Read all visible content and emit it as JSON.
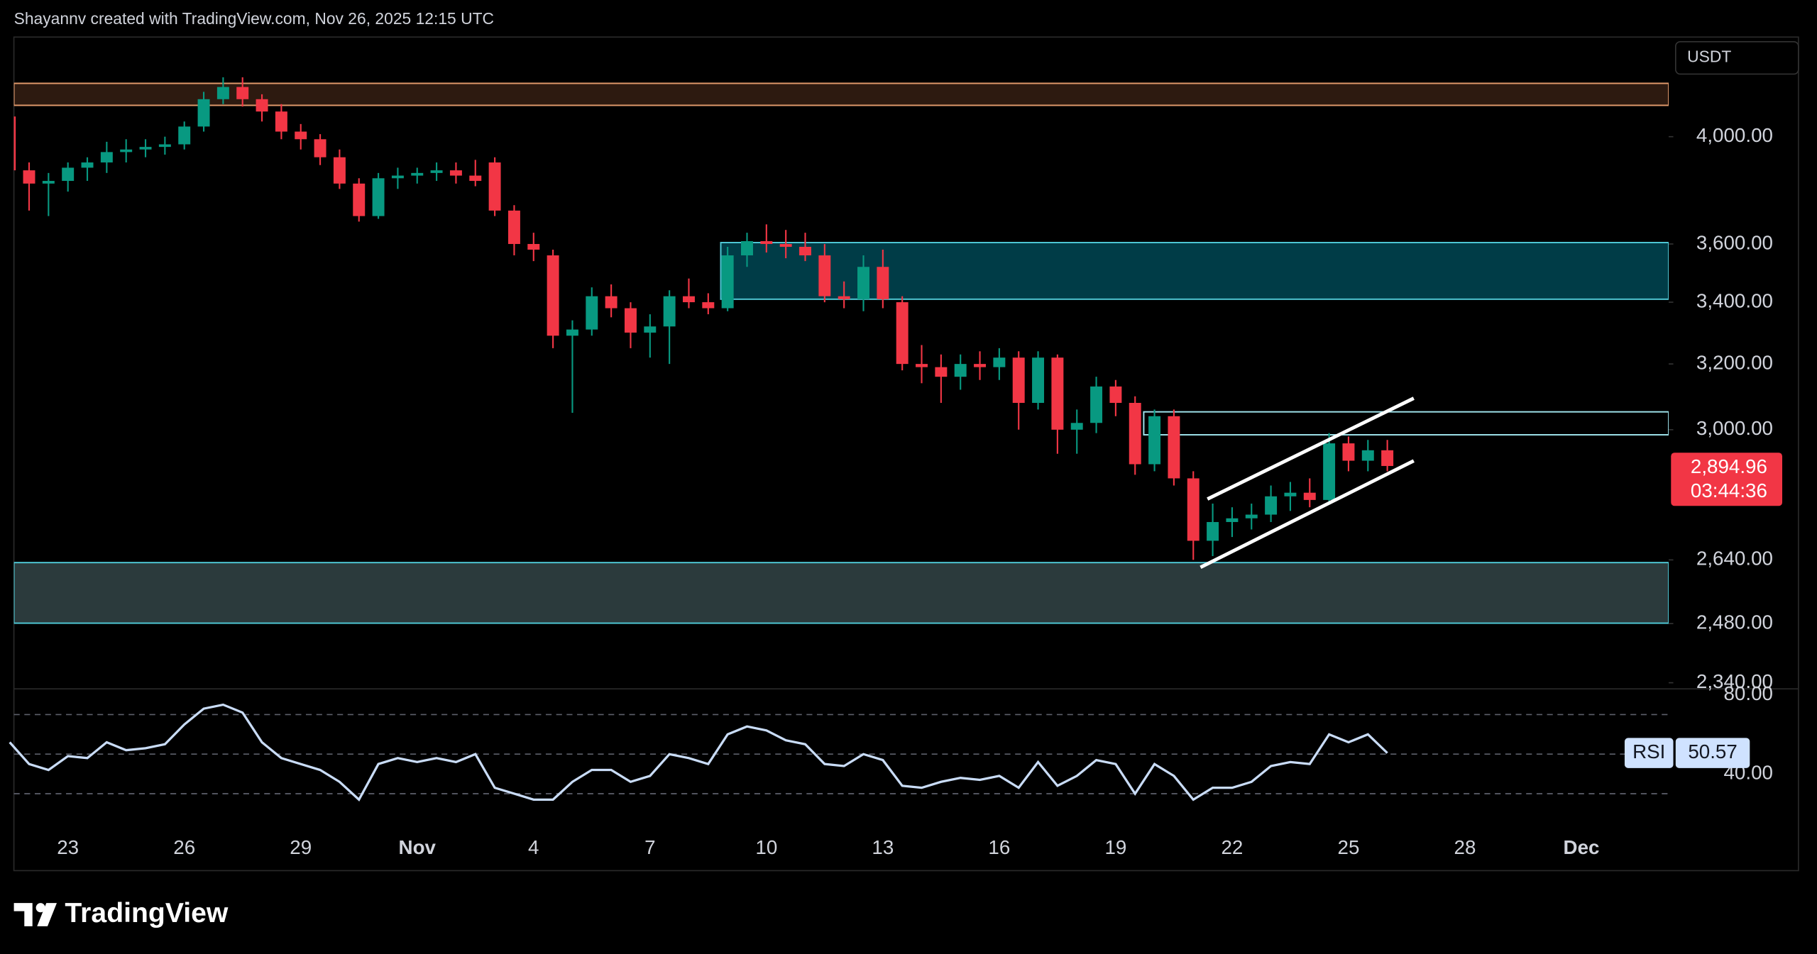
{
  "chart_data": {
    "type": "candlestick",
    "header": "Shayannv created with TradingView.com, Nov 26, 2025 12:15 UTC",
    "brand": "TradingView",
    "currency": "USDT",
    "log": true,
    "up_color": "#089981",
    "down_color": "#f23645",
    "categories": [
      null,
      null,
      null,
      "23",
      null,
      null,
      null,
      null,
      null,
      "26",
      null,
      null,
      null,
      null,
      null,
      "29",
      null,
      null,
      null,
      null,
      null,
      "Nov",
      null,
      null,
      null,
      null,
      null,
      "4",
      null,
      null,
      null,
      null,
      null,
      "7",
      null,
      null,
      null,
      null,
      null,
      "10",
      null,
      null,
      null,
      null,
      null,
      "13",
      null,
      null,
      null,
      null,
      null,
      "16",
      null,
      null,
      null,
      null,
      null,
      "19",
      null,
      null,
      null,
      null,
      null,
      "22",
      null,
      null,
      null,
      null,
      null,
      "25",
      null,
      null,
      null,
      null,
      null,
      "28",
      null,
      null,
      null,
      null,
      null,
      "Dec",
      null,
      null,
      null,
      null
    ],
    "open": [
      4080,
      3870,
      3820,
      3830,
      3880,
      3900,
      3940,
      3950,
      3960,
      3970,
      4040,
      4150,
      4200,
      4150,
      4100,
      4020,
      3990,
      3920,
      3820,
      3700,
      3840,
      3850,
      3860,
      3870,
      3850,
      3900,
      3720,
      3600,
      3560,
      3290,
      3310,
      3420,
      3380,
      3300,
      3320,
      3420,
      3400,
      3380,
      3560,
      3610,
      3600,
      3590,
      3560,
      3420,
      3410,
      3520,
      3400,
      3200,
      3190,
      3160,
      3200,
      3190,
      3220,
      3080,
      3220,
      3000,
      3020,
      3130,
      3080,
      2900,
      3040,
      2860,
      2690,
      2740,
      2750,
      2760,
      2810,
      2820,
      2800,
      2960,
      2910,
      2940,
      null,
      null,
      null,
      null,
      null,
      null,
      null,
      null,
      null,
      null,
      null,
      null,
      null,
      null
    ],
    "high": [
      4100,
      3900,
      3860,
      3900,
      3920,
      3980,
      3990,
      3990,
      4000,
      4060,
      4180,
      4240,
      4240,
      4170,
      4130,
      4050,
      4010,
      3950,
      3840,
      3860,
      3880,
      3880,
      3900,
      3900,
      3910,
      3920,
      3740,
      3640,
      3580,
      3340,
      3450,
      3460,
      3400,
      3360,
      3440,
      3480,
      3430,
      3590,
      3640,
      3670,
      3650,
      3640,
      3600,
      3470,
      3560,
      3580,
      3420,
      3260,
      3230,
      3230,
      3240,
      3250,
      3240,
      3240,
      3230,
      3060,
      3160,
      3150,
      3100,
      3060,
      3060,
      2880,
      2790,
      2780,
      2790,
      2840,
      2850,
      2860,
      2990,
      2980,
      2970,
      2970,
      null,
      null,
      null,
      null,
      null,
      null,
      null,
      null,
      null,
      null,
      null,
      null,
      null,
      null
    ],
    "low": [
      3850,
      3720,
      3700,
      3790,
      3830,
      3860,
      3900,
      3920,
      3930,
      3950,
      4020,
      4130,
      4120,
      4060,
      3990,
      3950,
      3890,
      3800,
      3680,
      3690,
      3800,
      3820,
      3830,
      3820,
      3810,
      3700,
      3560,
      3540,
      3250,
      3050,
      3290,
      3350,
      3250,
      3220,
      3200,
      3380,
      3360,
      3370,
      3520,
      3570,
      3550,
      3540,
      3400,
      3380,
      3370,
      3380,
      3180,
      3140,
      3080,
      3120,
      3150,
      3150,
      3000,
      3060,
      2930,
      2930,
      2990,
      3040,
      2870,
      2880,
      2840,
      2640,
      2650,
      2700,
      2720,
      2740,
      2770,
      2780,
      2790,
      2880,
      2880,
      2880,
      null,
      null,
      null,
      null,
      null,
      null,
      null,
      null,
      null,
      null,
      null,
      null,
      null,
      null
    ],
    "close": [
      3870,
      3820,
      3830,
      3880,
      3900,
      3940,
      3950,
      3960,
      3970,
      4040,
      4150,
      4200,
      4150,
      4100,
      4020,
      3990,
      3920,
      3820,
      3700,
      3840,
      3850,
      3860,
      3870,
      3850,
      3830,
      3720,
      3600,
      3580,
      3290,
      3310,
      3420,
      3380,
      3300,
      3320,
      3420,
      3400,
      3380,
      3560,
      3610,
      3600,
      3590,
      3560,
      3420,
      3410,
      3520,
      3410,
      3200,
      3190,
      3160,
      3200,
      3190,
      3220,
      3080,
      3220,
      3000,
      3020,
      3130,
      3080,
      2900,
      3040,
      2860,
      2690,
      2740,
      2750,
      2760,
      2810,
      2820,
      2800,
      2960,
      2910,
      2940,
      2894.96,
      null,
      null,
      null,
      null,
      null,
      null,
      null,
      null,
      null,
      null,
      null,
      null,
      null,
      null
    ],
    "close_label": "2,894.96",
    "countdown": "03:44:36",
    "ylim": [
      2326,
      4411
    ],
    "yticks": [
      {
        "value": 4000,
        "label": "4,000.00"
      },
      {
        "value": 3600,
        "label": "3,600.00"
      },
      {
        "value": 3400,
        "label": "3,400.00"
      },
      {
        "value": 3200,
        "label": "3,200.00"
      },
      {
        "value": 3000,
        "label": "3,000.00"
      },
      {
        "value": 2640,
        "label": "2,640.00"
      },
      {
        "value": 2480,
        "label": "2,480.00"
      },
      {
        "value": 2340,
        "label": "2,340.00"
      }
    ],
    "zones": [
      {
        "low": 4125,
        "high": 4215,
        "color": "#2d1a10",
        "border": "#e39a6c"
      },
      {
        "low": 3410,
        "high": 3605,
        "color": "#003c47",
        "border": "#4fc9d6"
      },
      {
        "low": 2985,
        "high": 3053,
        "color": "#000000",
        "border": "#9fe3ec"
      },
      {
        "low": 2481,
        "high": 2633,
        "color": "#2b3a3c",
        "border": "#4fc9d6"
      }
    ],
    "rsi": {
      "name": "RSI",
      "color": "#c9dcf7",
      "values": [
        56,
        45,
        42,
        49,
        48,
        56,
        52,
        53,
        55,
        65,
        73,
        75,
        71,
        56,
        48,
        45,
        42,
        36,
        27,
        45,
        48,
        46,
        48,
        46,
        50,
        33,
        30,
        27,
        27,
        36,
        42,
        42,
        36,
        39,
        50,
        48,
        45,
        60,
        64,
        62,
        57,
        55,
        45,
        44,
        50,
        47,
        34,
        33,
        36,
        38,
        37,
        39,
        33,
        46,
        34,
        39,
        47,
        45,
        30,
        45,
        39,
        27,
        33,
        33,
        36,
        44,
        46,
        45,
        60,
        56,
        60,
        50.57,
        null,
        null,
        null,
        null,
        null,
        null,
        null,
        null,
        null,
        null,
        null,
        null,
        null,
        null
      ],
      "ylim": [
        11,
        83
      ],
      "yticks": [
        {
          "value": 80,
          "label": "80.00"
        },
        {
          "value": 40,
          "label": "40.00"
        }
      ],
      "levels": [
        70,
        50,
        30
      ]
    }
  }
}
